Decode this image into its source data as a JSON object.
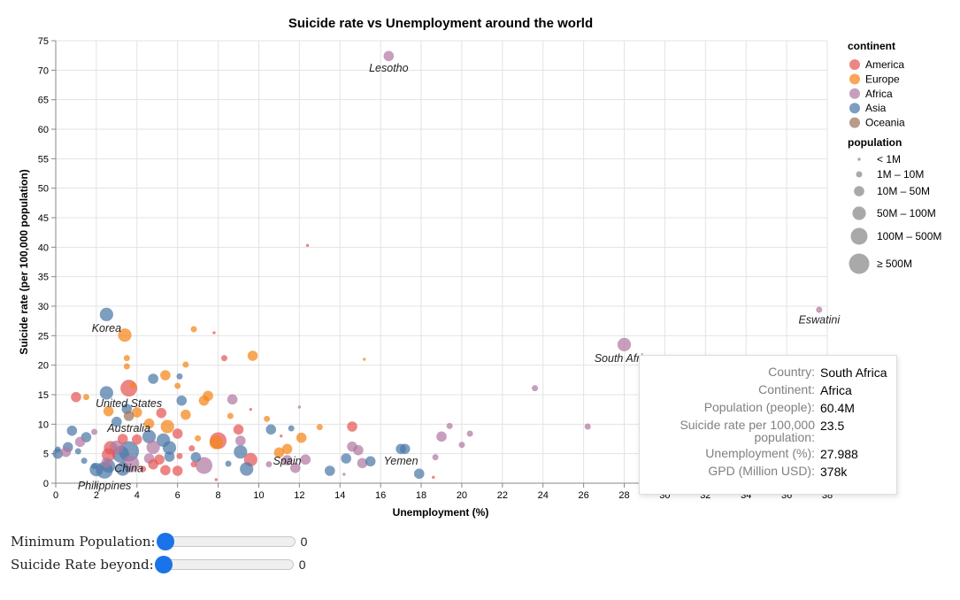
{
  "chart_data": {
    "type": "scatter",
    "title": "Suicide rate vs Unemployment around the world",
    "xlabel": "Unemployment (%)",
    "ylabel": "Suicide rate (per 100,000 population)",
    "xlim": [
      0,
      38
    ],
    "ylim": [
      0,
      75
    ],
    "x_ticks": [
      0,
      2,
      4,
      6,
      8,
      10,
      12,
      14,
      16,
      18,
      20,
      22,
      24,
      26,
      28,
      30,
      32,
      34,
      36,
      38
    ],
    "y_ticks": [
      0,
      5,
      10,
      15,
      20,
      25,
      30,
      35,
      40,
      45,
      50,
      55,
      60,
      65,
      70,
      75
    ],
    "grid": true,
    "legend_position": "right",
    "continents": [
      {
        "name": "America",
        "color": "#e45756"
      },
      {
        "name": "Europe",
        "color": "#f58518"
      },
      {
        "name": "Africa",
        "color": "#b279a2"
      },
      {
        "name": "Asia",
        "color": "#4c78a8"
      },
      {
        "name": "Oceania",
        "color": "#9d755d"
      }
    ],
    "color_legend_title": "continent",
    "size_legend_title": "population",
    "size_classes": [
      "< 1M",
      "1M – 10M",
      "10M – 50M",
      "50M – 100M",
      "100M – 500M",
      "≥ 500M"
    ],
    "labeled_points": [
      {
        "label": "Lesotho",
        "x": 16.4,
        "y": 72.4,
        "continent": "Africa",
        "size": 2
      },
      {
        "label": "Eswatini",
        "x": 37.6,
        "y": 29.4,
        "continent": "Africa",
        "size": 1
      },
      {
        "label": "South Africa",
        "x": 28.0,
        "y": 23.5,
        "continent": "Africa",
        "size": 3
      },
      {
        "label": "Korea",
        "x": 2.5,
        "y": 28.6,
        "continent": "Asia",
        "size": 3
      },
      {
        "label": "United States",
        "x": 3.6,
        "y": 16.1,
        "continent": "America",
        "size": 4
      },
      {
        "label": "Australia",
        "x": 3.6,
        "y": 11.4,
        "continent": "Oceania",
        "size": 2
      },
      {
        "label": "China",
        "x": 3.6,
        "y": 5.4,
        "continent": "Asia",
        "size": 5
      },
      {
        "label": "Spain",
        "x": 11.4,
        "y": 5.8,
        "continent": "Europe",
        "size": 2
      },
      {
        "label": "Yemen",
        "x": 17.0,
        "y": 5.8,
        "continent": "Asia",
        "size": 2
      },
      {
        "label": "Philippines",
        "x": 2.4,
        "y": 2.2,
        "continent": "Asia",
        "size": 4
      }
    ],
    "points": [
      {
        "x": 12.4,
        "y": 40.3,
        "continent": "America",
        "size": 0
      },
      {
        "x": 7.8,
        "y": 25.5,
        "continent": "America",
        "size": 0
      },
      {
        "x": 15.2,
        "y": 21.0,
        "continent": "Europe",
        "size": 0
      },
      {
        "x": 23.6,
        "y": 16.1,
        "continent": "Africa",
        "size": 1
      },
      {
        "x": 26.2,
        "y": 9.6,
        "continent": "Africa",
        "size": 1
      },
      {
        "x": 8.3,
        "y": 21.2,
        "continent": "America",
        "size": 1
      },
      {
        "x": 3.4,
        "y": 25.1,
        "continent": "Europe",
        "size": 3
      },
      {
        "x": 6.8,
        "y": 26.1,
        "continent": "Europe",
        "size": 1
      },
      {
        "x": 9.7,
        "y": 21.6,
        "continent": "Europe",
        "size": 2
      },
      {
        "x": 3.5,
        "y": 21.2,
        "continent": "Europe",
        "size": 1
      },
      {
        "x": 3.5,
        "y": 19.8,
        "continent": "Europe",
        "size": 1
      },
      {
        "x": 6.4,
        "y": 20.1,
        "continent": "Europe",
        "size": 1
      },
      {
        "x": 5.4,
        "y": 18.3,
        "continent": "Europe",
        "size": 2
      },
      {
        "x": 4.8,
        "y": 17.7,
        "continent": "Asia",
        "size": 2
      },
      {
        "x": 6.1,
        "y": 18.1,
        "continent": "Asia",
        "size": 1
      },
      {
        "x": 3.8,
        "y": 16.6,
        "continent": "Europe",
        "size": 1
      },
      {
        "x": 6.0,
        "y": 16.5,
        "continent": "Europe",
        "size": 1
      },
      {
        "x": 2.5,
        "y": 15.3,
        "continent": "Asia",
        "size": 3
      },
      {
        "x": 1.0,
        "y": 14.6,
        "continent": "America",
        "size": 2
      },
      {
        "x": 1.5,
        "y": 14.6,
        "continent": "Europe",
        "size": 1
      },
      {
        "x": 7.3,
        "y": 14.0,
        "continent": "Europe",
        "size": 2
      },
      {
        "x": 7.5,
        "y": 14.8,
        "continent": "Europe",
        "size": 2
      },
      {
        "x": 6.2,
        "y": 14.0,
        "continent": "Asia",
        "size": 2
      },
      {
        "x": 8.7,
        "y": 14.2,
        "continent": "Africa",
        "size": 2
      },
      {
        "x": 9.6,
        "y": 12.5,
        "continent": "America",
        "size": 0
      },
      {
        "x": 12.0,
        "y": 12.9,
        "continent": "Africa",
        "size": 0
      },
      {
        "x": 2.6,
        "y": 12.2,
        "continent": "Europe",
        "size": 2
      },
      {
        "x": 3.5,
        "y": 12.6,
        "continent": "Asia",
        "size": 2
      },
      {
        "x": 4.0,
        "y": 12.0,
        "continent": "Europe",
        "size": 2
      },
      {
        "x": 5.2,
        "y": 11.9,
        "continent": "America",
        "size": 2
      },
      {
        "x": 6.4,
        "y": 11.6,
        "continent": "Europe",
        "size": 2
      },
      {
        "x": 8.6,
        "y": 11.4,
        "continent": "Europe",
        "size": 1
      },
      {
        "x": 10.4,
        "y": 10.9,
        "continent": "Europe",
        "size": 1
      },
      {
        "x": 3.0,
        "y": 10.4,
        "continent": "Asia",
        "size": 2
      },
      {
        "x": 4.6,
        "y": 10.1,
        "continent": "Europe",
        "size": 2
      },
      {
        "x": 5.5,
        "y": 9.6,
        "continent": "Europe",
        "size": 3
      },
      {
        "x": 9.0,
        "y": 9.1,
        "continent": "America",
        "size": 2
      },
      {
        "x": 10.6,
        "y": 9.1,
        "continent": "Asia",
        "size": 2
      },
      {
        "x": 11.6,
        "y": 9.3,
        "continent": "Asia",
        "size": 1
      },
      {
        "x": 13.0,
        "y": 9.5,
        "continent": "Europe",
        "size": 1
      },
      {
        "x": 14.6,
        "y": 9.6,
        "continent": "America",
        "size": 2
      },
      {
        "x": 19.4,
        "y": 9.7,
        "continent": "Africa",
        "size": 1
      },
      {
        "x": 20.4,
        "y": 8.4,
        "continent": "Africa",
        "size": 1
      },
      {
        "x": 19.0,
        "y": 7.9,
        "continent": "Africa",
        "size": 2
      },
      {
        "x": 0.8,
        "y": 8.9,
        "continent": "Asia",
        "size": 2
      },
      {
        "x": 1.9,
        "y": 8.7,
        "continent": "Africa",
        "size": 1
      },
      {
        "x": 1.5,
        "y": 7.8,
        "continent": "Asia",
        "size": 2
      },
      {
        "x": 3.3,
        "y": 7.5,
        "continent": "America",
        "size": 2
      },
      {
        "x": 4.0,
        "y": 7.4,
        "continent": "America",
        "size": 2
      },
      {
        "x": 4.6,
        "y": 7.9,
        "continent": "Asia",
        "size": 3
      },
      {
        "x": 5.3,
        "y": 7.3,
        "continent": "Asia",
        "size": 3
      },
      {
        "x": 6.0,
        "y": 8.4,
        "continent": "America",
        "size": 2
      },
      {
        "x": 7.0,
        "y": 7.6,
        "continent": "Europe",
        "size": 1
      },
      {
        "x": 7.9,
        "y": 6.9,
        "continent": "Europe",
        "size": 3
      },
      {
        "x": 8.0,
        "y": 7.2,
        "continent": "America",
        "size": 4
      },
      {
        "x": 9.1,
        "y": 7.2,
        "continent": "Africa",
        "size": 2
      },
      {
        "x": 11.1,
        "y": 8.0,
        "continent": "America",
        "size": 0
      },
      {
        "x": 12.1,
        "y": 7.7,
        "continent": "Europe",
        "size": 2
      },
      {
        "x": 0.6,
        "y": 6.1,
        "continent": "Asia",
        "size": 2
      },
      {
        "x": 1.2,
        "y": 7.0,
        "continent": "Africa",
        "size": 2
      },
      {
        "x": 2.7,
        "y": 6.0,
        "continent": "America",
        "size": 3
      },
      {
        "x": 3.0,
        "y": 6.1,
        "continent": "Africa",
        "size": 3
      },
      {
        "x": 4.8,
        "y": 6.1,
        "continent": "Africa",
        "size": 3
      },
      {
        "x": 5.6,
        "y": 6.0,
        "continent": "Asia",
        "size": 3
      },
      {
        "x": 6.7,
        "y": 5.9,
        "continent": "America",
        "size": 1
      },
      {
        "x": 14.6,
        "y": 6.2,
        "continent": "Africa",
        "size": 2
      },
      {
        "x": 14.9,
        "y": 5.6,
        "continent": "Africa",
        "size": 2
      },
      {
        "x": 17.2,
        "y": 5.8,
        "continent": "Asia",
        "size": 2
      },
      {
        "x": 20.0,
        "y": 6.5,
        "continent": "Africa",
        "size": 1
      },
      {
        "x": 0.1,
        "y": 5.7,
        "continent": "Asia",
        "size": 1
      },
      {
        "x": 0.1,
        "y": 5.0,
        "continent": "Asia",
        "size": 2
      },
      {
        "x": 0.5,
        "y": 5.3,
        "continent": "Africa",
        "size": 2
      },
      {
        "x": 1.1,
        "y": 5.4,
        "continent": "Asia",
        "size": 1
      },
      {
        "x": 2.6,
        "y": 4.8,
        "continent": "America",
        "size": 3
      },
      {
        "x": 3.2,
        "y": 4.9,
        "continent": "Asia",
        "size": 4
      },
      {
        "x": 4.6,
        "y": 4.2,
        "continent": "Africa",
        "size": 2
      },
      {
        "x": 5.1,
        "y": 4.0,
        "continent": "America",
        "size": 2
      },
      {
        "x": 5.6,
        "y": 4.5,
        "continent": "Asia",
        "size": 2
      },
      {
        "x": 6.1,
        "y": 4.6,
        "continent": "America",
        "size": 1
      },
      {
        "x": 6.9,
        "y": 4.4,
        "continent": "Asia",
        "size": 2
      },
      {
        "x": 9.1,
        "y": 5.3,
        "continent": "Asia",
        "size": 3
      },
      {
        "x": 9.6,
        "y": 4.0,
        "continent": "America",
        "size": 3
      },
      {
        "x": 11.0,
        "y": 5.2,
        "continent": "Europe",
        "size": 2
      },
      {
        "x": 11.4,
        "y": 3.9,
        "continent": "Africa",
        "size": 2
      },
      {
        "x": 12.3,
        "y": 4.0,
        "continent": "Africa",
        "size": 2
      },
      {
        "x": 14.3,
        "y": 4.2,
        "continent": "Asia",
        "size": 2
      },
      {
        "x": 15.1,
        "y": 3.4,
        "continent": "Africa",
        "size": 2
      },
      {
        "x": 15.5,
        "y": 3.7,
        "continent": "Asia",
        "size": 2
      },
      {
        "x": 18.7,
        "y": 4.4,
        "continent": "Africa",
        "size": 1
      },
      {
        "x": 1.4,
        "y": 3.8,
        "continent": "Asia",
        "size": 1
      },
      {
        "x": 2.5,
        "y": 3.5,
        "continent": "Africa",
        "size": 2
      },
      {
        "x": 3.7,
        "y": 3.3,
        "continent": "Africa",
        "size": 4
      },
      {
        "x": 4.8,
        "y": 3.2,
        "continent": "America",
        "size": 2
      },
      {
        "x": 6.8,
        "y": 3.2,
        "continent": "America",
        "size": 1
      },
      {
        "x": 7.3,
        "y": 3.0,
        "continent": "Africa",
        "size": 4
      },
      {
        "x": 8.5,
        "y": 3.3,
        "continent": "Asia",
        "size": 1
      },
      {
        "x": 10.5,
        "y": 3.2,
        "continent": "Africa",
        "size": 1
      },
      {
        "x": 1.9,
        "y": 2.9,
        "continent": "Asia",
        "size": 1
      },
      {
        "x": 2.0,
        "y": 2.3,
        "continent": "Asia",
        "size": 3
      },
      {
        "x": 2.6,
        "y": 2.9,
        "continent": "Asia",
        "size": 3
      },
      {
        "x": 3.3,
        "y": 2.4,
        "continent": "Asia",
        "size": 3
      },
      {
        "x": 4.3,
        "y": 2.4,
        "continent": "America",
        "size": 1
      },
      {
        "x": 5.4,
        "y": 2.2,
        "continent": "America",
        "size": 2
      },
      {
        "x": 6.0,
        "y": 2.1,
        "continent": "America",
        "size": 2
      },
      {
        "x": 9.4,
        "y": 2.4,
        "continent": "Asia",
        "size": 3
      },
      {
        "x": 11.8,
        "y": 2.6,
        "continent": "Africa",
        "size": 2
      },
      {
        "x": 13.5,
        "y": 2.1,
        "continent": "Asia",
        "size": 2
      },
      {
        "x": 14.2,
        "y": 1.5,
        "continent": "Africa",
        "size": 0
      },
      {
        "x": 17.9,
        "y": 1.6,
        "continent": "Asia",
        "size": 2
      },
      {
        "x": 18.6,
        "y": 1.0,
        "continent": "America",
        "size": 0
      },
      {
        "x": 7.9,
        "y": 0.6,
        "continent": "America",
        "size": 0
      }
    ]
  },
  "tooltip": {
    "rows": [
      {
        "key": "Country:",
        "value": "South Africa"
      },
      {
        "key": "Continent:",
        "value": "Africa"
      },
      {
        "key": "Population (people):",
        "value": "60.4M"
      },
      {
        "key": "Suicide rate per 100,000 population:",
        "value": "23.5"
      },
      {
        "key": "Unemployment (%):",
        "value": "27.988"
      },
      {
        "key": "GPD (Million USD):",
        "value": "378k"
      }
    ]
  },
  "controls": {
    "min_population": {
      "label": "Minimum Population:",
      "value": "0"
    },
    "suicide_rate": {
      "label": "Suicide Rate beyond:",
      "value": "0"
    }
  }
}
